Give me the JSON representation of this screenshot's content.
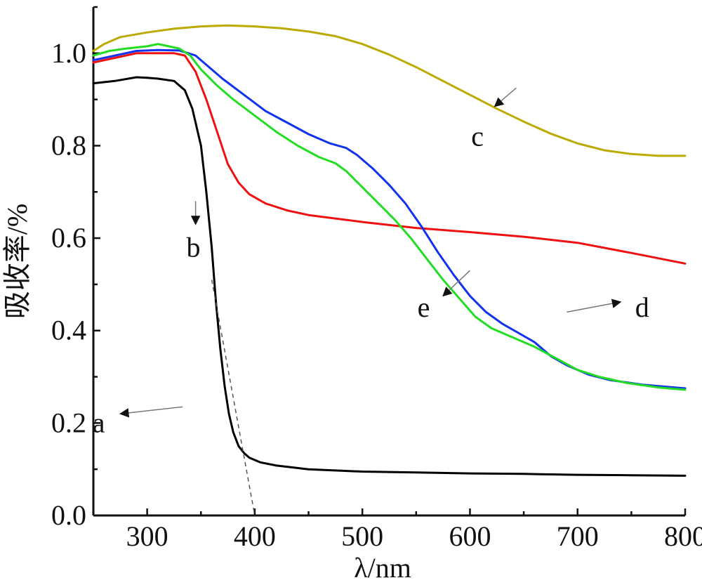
{
  "chart_data": {
    "type": "line",
    "title": "",
    "xlabel": "λ/nm",
    "ylabel": "吸收率/%",
    "xlim": [
      250,
      800
    ],
    "ylim": [
      0,
      1.1
    ],
    "xticks": [
      300,
      400,
      500,
      600,
      700,
      800
    ],
    "yticks": [
      0.0,
      0.2,
      0.4,
      0.6,
      0.8,
      1.0
    ],
    "xtick_labels": [
      "300",
      "400",
      "500",
      "600",
      "700",
      "800"
    ],
    "ytick_labels": [
      "0.0",
      "0.2",
      "0.4",
      "0.6",
      "0.8",
      "1.0"
    ],
    "grid": false,
    "legend": "none",
    "series": [
      {
        "label": "a",
        "color": "#000000",
        "points": [
          [
            250,
            0.935
          ],
          [
            270,
            0.94
          ],
          [
            290,
            0.948
          ],
          [
            300,
            0.947
          ],
          [
            310,
            0.945
          ],
          [
            325,
            0.94
          ],
          [
            335,
            0.92
          ],
          [
            342,
            0.88
          ],
          [
            350,
            0.8
          ],
          [
            355,
            0.7
          ],
          [
            360,
            0.58
          ],
          [
            364,
            0.46
          ],
          [
            368,
            0.36
          ],
          [
            372,
            0.28
          ],
          [
            376,
            0.22
          ],
          [
            380,
            0.18
          ],
          [
            385,
            0.15
          ],
          [
            390,
            0.135
          ],
          [
            395,
            0.125
          ],
          [
            405,
            0.115
          ],
          [
            420,
            0.108
          ],
          [
            450,
            0.1
          ],
          [
            500,
            0.095
          ],
          [
            550,
            0.093
          ],
          [
            600,
            0.091
          ],
          [
            650,
            0.09
          ],
          [
            700,
            0.088
          ],
          [
            750,
            0.087
          ],
          [
            800,
            0.086
          ]
        ],
        "label_pos": [
          500,
          0.19
        ],
        "label_text_pos": [
          255,
          0.18
        ],
        "arrow_from": [
          333,
          0.235
        ],
        "arrow_to": [
          275,
          0.22
        ]
      },
      {
        "label": "b",
        "color": "#ee1111",
        "points": [
          [
            250,
            0.98
          ],
          [
            270,
            0.99
          ],
          [
            290,
            1.0
          ],
          [
            310,
            1.0
          ],
          [
            325,
            1.0
          ],
          [
            335,
            0.995
          ],
          [
            345,
            0.96
          ],
          [
            355,
            0.9
          ],
          [
            365,
            0.83
          ],
          [
            375,
            0.76
          ],
          [
            385,
            0.72
          ],
          [
            395,
            0.695
          ],
          [
            410,
            0.675
          ],
          [
            430,
            0.66
          ],
          [
            450,
            0.65
          ],
          [
            500,
            0.635
          ],
          [
            550,
            0.622
          ],
          [
            600,
            0.613
          ],
          [
            650,
            0.603
          ],
          [
            700,
            0.59
          ],
          [
            750,
            0.568
          ],
          [
            800,
            0.545
          ]
        ],
        "label_text_pos": [
          343,
          0.56
        ],
        "arrow_from": [
          345,
          0.68
        ],
        "arrow_to": [
          345,
          0.63
        ]
      },
      {
        "label": "c",
        "color": "#bbaa00",
        "points": [
          [
            250,
            1.005
          ],
          [
            260,
            1.02
          ],
          [
            275,
            1.035
          ],
          [
            300,
            1.045
          ],
          [
            325,
            1.053
          ],
          [
            350,
            1.058
          ],
          [
            375,
            1.06
          ],
          [
            400,
            1.058
          ],
          [
            425,
            1.054
          ],
          [
            450,
            1.047
          ],
          [
            475,
            1.037
          ],
          [
            500,
            1.02
          ],
          [
            525,
            0.997
          ],
          [
            550,
            0.97
          ],
          [
            575,
            0.94
          ],
          [
            600,
            0.91
          ],
          [
            625,
            0.88
          ],
          [
            650,
            0.852
          ],
          [
            675,
            0.826
          ],
          [
            700,
            0.805
          ],
          [
            725,
            0.79
          ],
          [
            750,
            0.782
          ],
          [
            775,
            0.778
          ],
          [
            800,
            0.778
          ]
        ],
        "label_text_pos": [
          607,
          0.8
        ],
        "arrow_from": [
          643,
          0.925
        ],
        "arrow_to": [
          623,
          0.885
        ]
      },
      {
        "label": "d",
        "color": "#1133ee",
        "points": [
          [
            250,
            0.985
          ],
          [
            270,
            0.995
          ],
          [
            290,
            1.005
          ],
          [
            310,
            1.007
          ],
          [
            330,
            1.006
          ],
          [
            345,
            0.995
          ],
          [
            355,
            0.975
          ],
          [
            370,
            0.945
          ],
          [
            390,
            0.91
          ],
          [
            410,
            0.875
          ],
          [
            430,
            0.85
          ],
          [
            450,
            0.825
          ],
          [
            470,
            0.805
          ],
          [
            485,
            0.795
          ],
          [
            495,
            0.78
          ],
          [
            510,
            0.75
          ],
          [
            525,
            0.715
          ],
          [
            540,
            0.675
          ],
          [
            555,
            0.625
          ],
          [
            570,
            0.57
          ],
          [
            585,
            0.52
          ],
          [
            600,
            0.475
          ],
          [
            615,
            0.44
          ],
          [
            630,
            0.415
          ],
          [
            645,
            0.395
          ],
          [
            660,
            0.375
          ],
          [
            675,
            0.345
          ],
          [
            690,
            0.325
          ],
          [
            710,
            0.305
          ],
          [
            730,
            0.293
          ],
          [
            760,
            0.283
          ],
          [
            800,
            0.275
          ]
        ],
        "label_text_pos": [
          760,
          0.43
        ],
        "arrow_from": [
          690,
          0.44
        ],
        "arrow_to": [
          740,
          0.462
        ]
      },
      {
        "label": "e",
        "color": "#22dd22",
        "points": [
          [
            250,
            0.995
          ],
          [
            265,
            1.005
          ],
          [
            280,
            1.01
          ],
          [
            300,
            1.015
          ],
          [
            310,
            1.02
          ],
          [
            320,
            1.015
          ],
          [
            330,
            1.01
          ],
          [
            340,
            0.995
          ],
          [
            350,
            0.965
          ],
          [
            365,
            0.93
          ],
          [
            380,
            0.9
          ],
          [
            400,
            0.865
          ],
          [
            420,
            0.83
          ],
          [
            440,
            0.8
          ],
          [
            460,
            0.775
          ],
          [
            475,
            0.762
          ],
          [
            485,
            0.745
          ],
          [
            500,
            0.71
          ],
          [
            515,
            0.675
          ],
          [
            530,
            0.64
          ],
          [
            545,
            0.6
          ],
          [
            560,
            0.555
          ],
          [
            575,
            0.51
          ],
          [
            590,
            0.47
          ],
          [
            605,
            0.43
          ],
          [
            620,
            0.405
          ],
          [
            640,
            0.385
          ],
          [
            660,
            0.365
          ],
          [
            680,
            0.34
          ],
          [
            700,
            0.315
          ],
          [
            720,
            0.3
          ],
          [
            745,
            0.287
          ],
          [
            775,
            0.277
          ],
          [
            800,
            0.272
          ]
        ],
        "label_text_pos": [
          557,
          0.43
        ],
        "arrow_from": [
          600,
          0.53
        ],
        "arrow_to": [
          575,
          0.475
        ]
      }
    ],
    "tangent_line": {
      "color": "#555555",
      "points": [
        [
          360,
          0.51
        ],
        [
          400,
          0.0
        ]
      ]
    }
  }
}
